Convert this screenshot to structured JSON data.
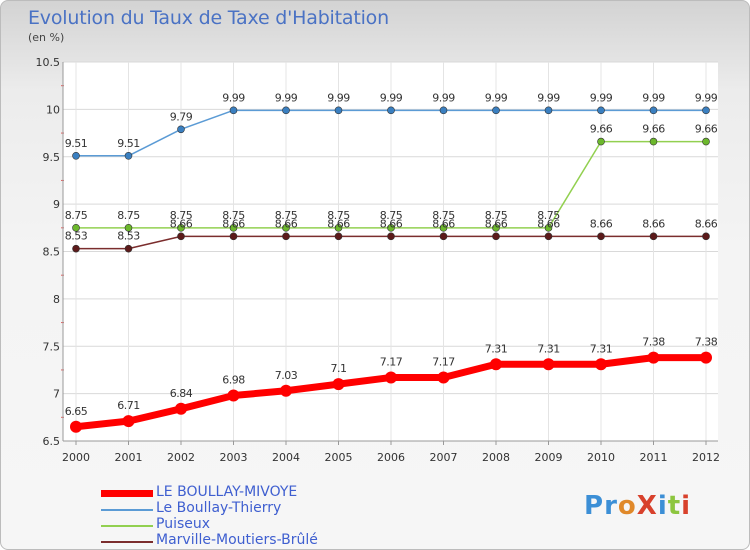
{
  "title": "Evolution du Taux de Taxe d'Habitation",
  "subtitle": "(en %)",
  "logo_text": "ProXiti",
  "chart_data": {
    "type": "line",
    "title": "Evolution du Taux de Taxe d'Habitation",
    "ylabel": "(en %)",
    "xlabel": "",
    "ylim": [
      6.5,
      10.5
    ],
    "yticks": [
      "6.5",
      "7",
      "7.5",
      "8",
      "8.5",
      "9",
      "9.5",
      "10",
      "10.5"
    ],
    "categories": [
      "2000",
      "2001",
      "2002",
      "2003",
      "2004",
      "2005",
      "2006",
      "2007",
      "2008",
      "2009",
      "2010",
      "2011",
      "2012"
    ],
    "series": [
      {
        "name": "Le Boullay-Thierry",
        "color": "#5b9bd5",
        "marker": "#3a7fc0",
        "values": [
          9.51,
          9.51,
          9.79,
          9.99,
          9.99,
          9.99,
          9.99,
          9.99,
          9.99,
          9.99,
          9.99,
          9.99,
          9.99
        ],
        "labels": [
          "9.51",
          "9.51",
          "9.79",
          "9.99",
          "9.99",
          "9.99",
          "9.99",
          "9.99",
          "9.99",
          "9.99",
          "9.99",
          "9.99",
          "9.99"
        ]
      },
      {
        "name": "Puiseux",
        "color": "#92d050",
        "marker": "#6cb82c",
        "values": [
          8.75,
          8.75,
          8.75,
          8.75,
          8.75,
          8.75,
          8.75,
          8.75,
          8.75,
          8.75,
          9.66,
          9.66,
          9.66
        ],
        "labels": [
          "8.75",
          "8.75",
          "8.75",
          "8.75",
          "8.75",
          "8.75",
          "8.75",
          "8.75",
          "8.75",
          "8.75",
          "9.66",
          "9.66",
          "9.66"
        ]
      },
      {
        "name": "Marville-Moutiers-Brûlé",
        "color": "#7b2d2d",
        "marker": "#5c1a1a",
        "values": [
          8.53,
          8.53,
          8.66,
          8.66,
          8.66,
          8.66,
          8.66,
          8.66,
          8.66,
          8.66,
          8.66,
          8.66,
          8.66
        ],
        "labels": [
          "8.53",
          "8.53",
          "8.66",
          "8.66",
          "8.66",
          "8.66",
          "8.66",
          "8.66",
          "8.66",
          "8.66",
          "8.66",
          "8.66",
          "8.66"
        ]
      },
      {
        "name": "LE BOULLAY-MIVOYE",
        "color": "#ff0000",
        "marker": "#ff0000",
        "values": [
          6.65,
          6.71,
          6.84,
          6.98,
          7.03,
          7.1,
          7.17,
          7.17,
          7.31,
          7.31,
          7.31,
          7.38,
          7.38
        ],
        "labels": [
          "6.65",
          "6.71",
          "6.84",
          "6.98",
          "7.03",
          "7.1",
          "7.17",
          "7.17",
          "7.31",
          "7.31",
          "7.31",
          "7.38",
          "7.38"
        ]
      }
    ],
    "legend": [
      "LE BOULLAY-MIVOYE",
      "Le Boullay-Thierry",
      "Puiseux",
      "Marville-Moutiers-Brûlé"
    ],
    "legend_position": "bottom-left",
    "grid": true
  }
}
